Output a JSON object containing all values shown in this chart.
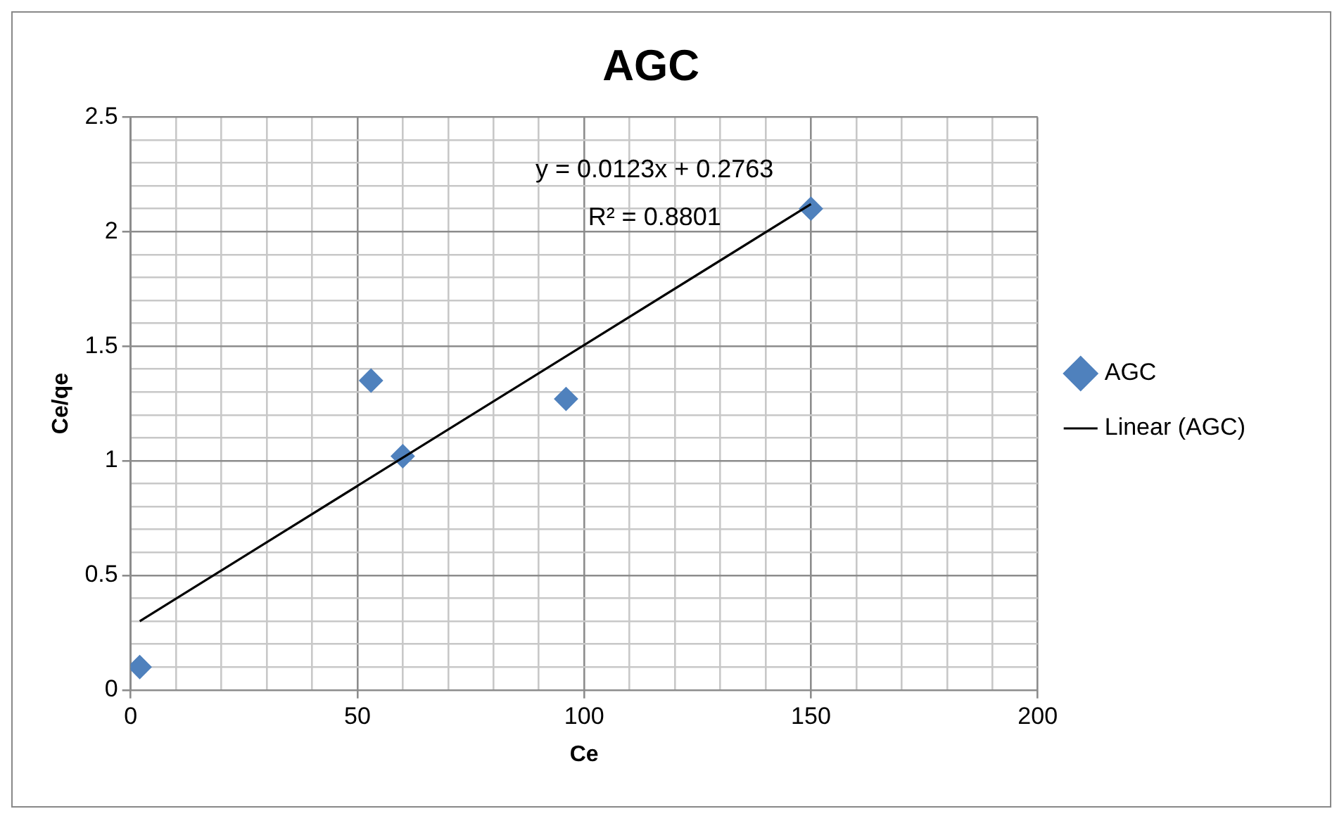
{
  "chart_data": {
    "type": "scatter",
    "title": "AGC",
    "xlabel": "Ce",
    "ylabel": "Ce/qe",
    "series": [
      {
        "name": "AGC",
        "color": "#4f81bd",
        "x": [
          2,
          53,
          60,
          96,
          150
        ],
        "values": [
          0.1,
          1.35,
          1.02,
          1.27,
          2.1
        ],
        "marker": "diamond"
      },
      {
        "name": "Linear (AGC)",
        "type": "line",
        "color": "#000000",
        "x": [
          2,
          150
        ],
        "values": [
          0.3,
          2.12
        ],
        "marker": "none",
        "line_style": "solid"
      }
    ],
    "xlim": [
      0,
      200
    ],
    "xticks": [
      0,
      {
        "value": 10,
        "label": null
      },
      {
        "value": 20,
        "label": null
      },
      {
        "value": 30,
        "label": null
      },
      {
        "value": 40,
        "label": null
      },
      50,
      {
        "value": 60,
        "label": null
      },
      {
        "value": 70,
        "label": null
      },
      {
        "value": 80,
        "label": null
      },
      {
        "value": 90,
        "label": null
      },
      100,
      {
        "value": 110,
        "label": null
      },
      {
        "value": 120,
        "label": null
      },
      {
        "value": 130,
        "label": null
      },
      {
        "value": 140,
        "label": null
      },
      150,
      {
        "value": 160,
        "label": null
      },
      {
        "value": 170,
        "label": null
      },
      {
        "value": 180,
        "label": null
      },
      {
        "value": 190,
        "label": null
      },
      200
    ],
    "ylim": [
      0,
      2.5
    ],
    "yticks": [
      0,
      {
        "value": 0.1,
        "label": null
      },
      {
        "value": 0.2,
        "label": null
      },
      {
        "value": 0.3,
        "label": null
      },
      {
        "value": 0.4,
        "label": null
      },
      0.5,
      {
        "value": 0.6,
        "label": null
      },
      {
        "value": 0.7,
        "label": null
      },
      {
        "value": 0.8,
        "label": null
      },
      {
        "value": 0.9,
        "label": null
      },
      1,
      {
        "value": 1.1,
        "label": null
      },
      {
        "value": 1.2,
        "label": null
      },
      {
        "value": 1.3,
        "label": null
      },
      {
        "value": 1.4,
        "label": null
      },
      1.5,
      {
        "value": 1.6,
        "label": null
      },
      {
        "value": 1.7,
        "label": null
      },
      {
        "value": 1.8,
        "label": null
      },
      {
        "value": 1.9,
        "label": null
      },
      2,
      {
        "value": 2.1,
        "label": null
      },
      {
        "value": 2.2,
        "label": null
      },
      {
        "value": 2.3,
        "label": null
      },
      {
        "value": 2.4,
        "label": null
      },
      2.5
    ],
    "grid": true,
    "legend": "right",
    "annotations": [
      "y = 0.0123x + 0.2763",
      "R² = 0.8801"
    ]
  }
}
